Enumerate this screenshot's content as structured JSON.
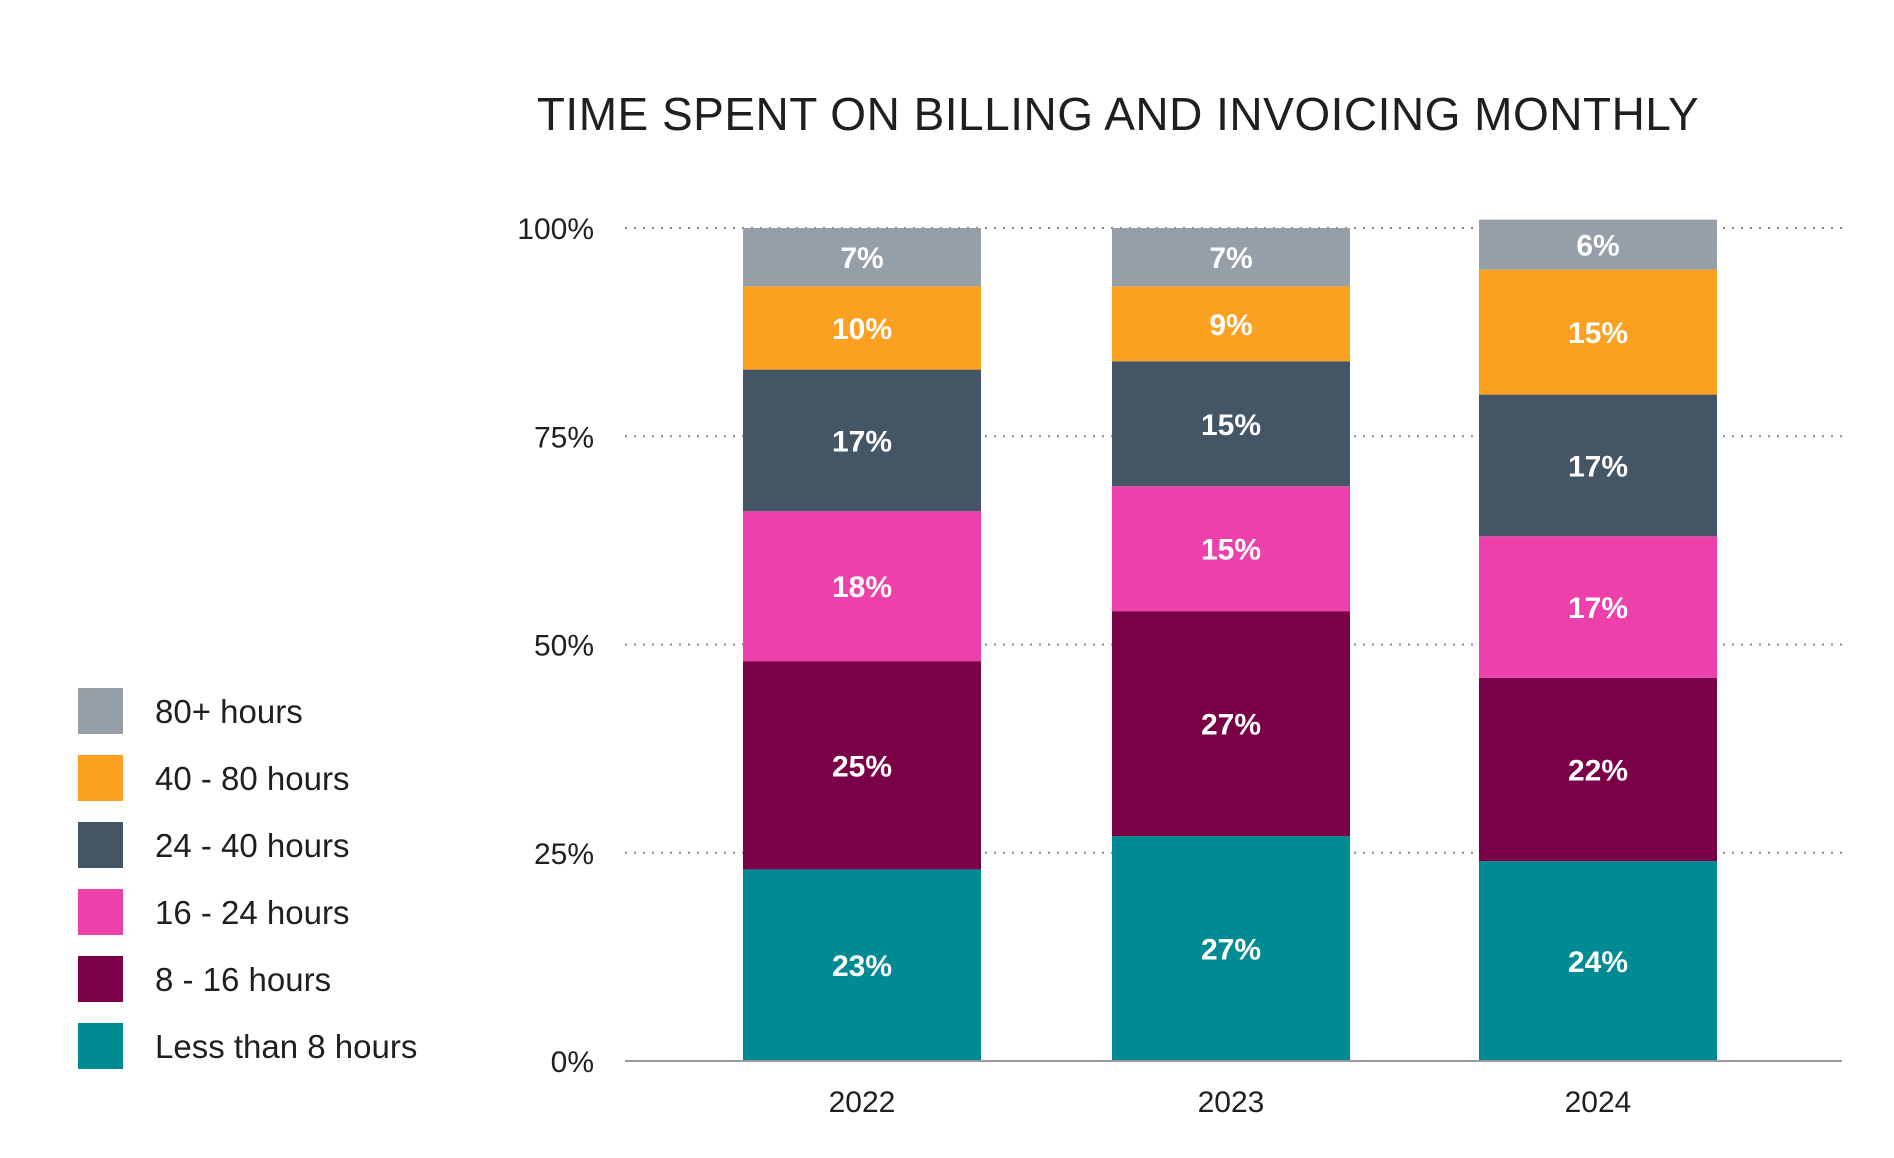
{
  "chart_data": {
    "type": "bar",
    "stacked": true,
    "title": "TIME SPENT ON BILLING AND INVOICING MONTHLY",
    "xlabel": "",
    "ylabel": "",
    "ylim": [
      0,
      100
    ],
    "yticks": [
      "0%",
      "25%",
      "50%",
      "75%",
      "100%"
    ],
    "categories": [
      "2022",
      "2023",
      "2024"
    ],
    "grid": "horizontal dotted",
    "legend_position": "left",
    "series": [
      {
        "name": "Less than 8 hours",
        "color": "#008b94",
        "values": [
          23,
          27,
          24
        ],
        "labels": [
          "23%",
          "27%",
          "24%"
        ]
      },
      {
        "name": "8 - 16 hours",
        "color": "#7a0048",
        "values": [
          25,
          27,
          22
        ],
        "labels": [
          "25%",
          "27%",
          "22%"
        ]
      },
      {
        "name": "16 - 24 hours",
        "color": "#ee40aa",
        "values": [
          18,
          15,
          17
        ],
        "labels": [
          "18%",
          "15%",
          "17%"
        ]
      },
      {
        "name": "24 - 40 hours",
        "color": "#445566",
        "values": [
          17,
          15,
          17
        ],
        "labels": [
          "17%",
          "15%",
          "17%"
        ]
      },
      {
        "name": "40 - 80 hours",
        "color": "#fba020",
        "values": [
          10,
          9,
          15
        ],
        "labels": [
          "10%",
          "9%",
          "15%"
        ]
      },
      {
        "name": "80+ hours",
        "color": "#969ea8",
        "values": [
          7,
          7,
          6
        ],
        "labels": [
          "7%",
          "7%",
          "6%"
        ]
      }
    ]
  }
}
